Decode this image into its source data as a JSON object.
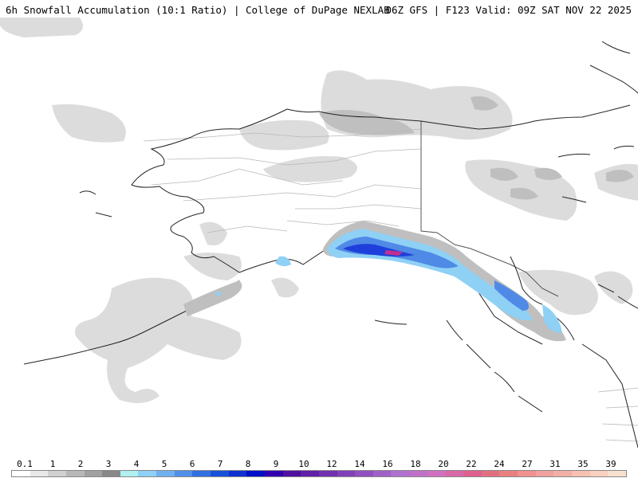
{
  "header": {
    "title_left": "6h Snowfall Accumulation (10:1 Ratio) | College of DuPage NEXLAB",
    "title_right": "06Z GFS | F123 Valid: 09Z SAT NOV 22 2025"
  },
  "map": {
    "region": "Alaska",
    "colors": {
      "light_gray": "#dcdcdc",
      "mid_gray": "#bfbfbf",
      "dark_gray": "#a3a3a3",
      "light_blue": "#8fd0f5",
      "blue": "#4f8ae6",
      "dark_blue": "#1f3fdc",
      "purple": "#6a1ec4",
      "magenta": "#c03090",
      "coastline": "#222222",
      "borders": "#b8b8b8"
    }
  },
  "legend": {
    "labels": [
      "0.1",
      "1",
      "2",
      "3",
      "4",
      "5",
      "6",
      "7",
      "8",
      "9",
      "10",
      "12",
      "14",
      "16",
      "18",
      "20",
      "22",
      "24",
      "27",
      "31",
      "35",
      "39"
    ],
    "colors": [
      "#ffffff",
      "#e8e8e8",
      "#d0d0d0",
      "#b8b8b8",
      "#a0a0a0",
      "#888888",
      "#b0f0f0",
      "#8fd0f5",
      "#70b0f0",
      "#5090e8",
      "#3070e0",
      "#1850d8",
      "#1030d0",
      "#0010c8",
      "#3000b0",
      "#5010a0",
      "#6020a8",
      "#7030b0",
      "#8040b8",
      "#9050c0",
      "#a060c8",
      "#b070d0",
      "#c070c8",
      "#d070c0",
      "#d868a8",
      "#e06090",
      "#e07080",
      "#e88080",
      "#f09090",
      "#f0a0a0",
      "#f0b0a8",
      "#f8c0b0",
      "#f8d0c0",
      "#f8e0d0"
    ]
  }
}
